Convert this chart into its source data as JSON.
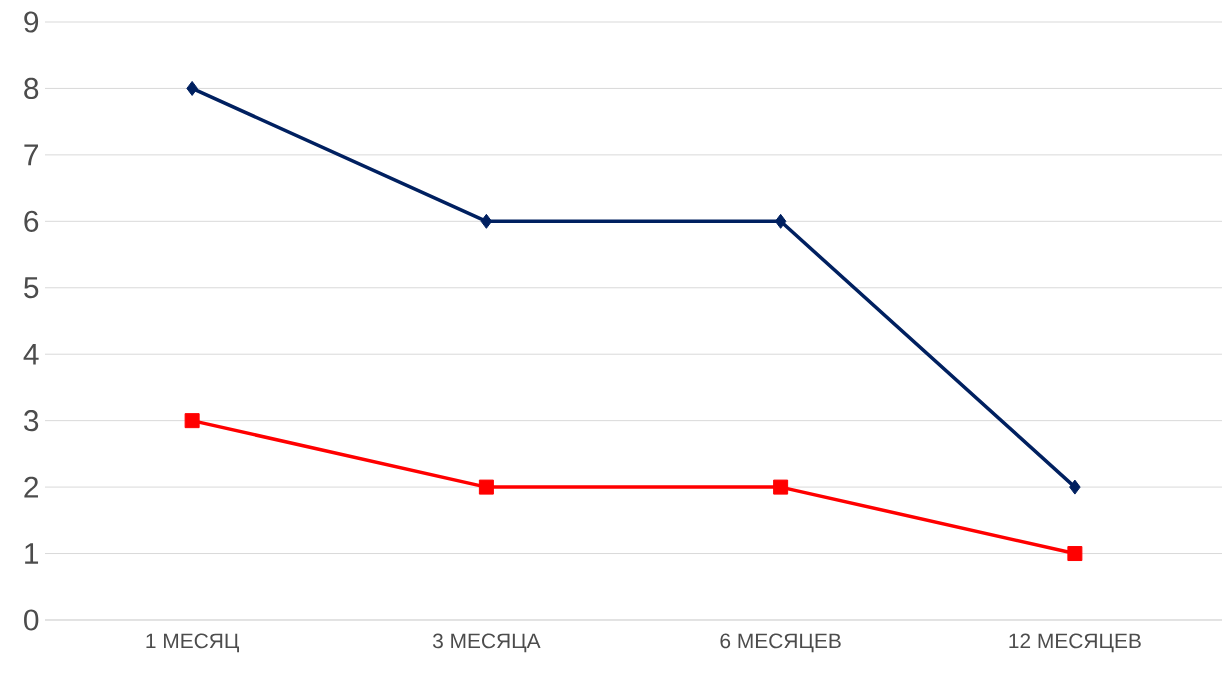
{
  "chart_data": {
    "type": "line",
    "categories": [
      "1 МЕСЯЦ",
      "3 МЕСЯЦА",
      "6 МЕСЯЦЕВ",
      "12 МЕСЯЦЕВ"
    ],
    "series": [
      {
        "color": "#002060",
        "marker": "diamond",
        "values": [
          8,
          6,
          6,
          2
        ]
      },
      {
        "color": "#ff0000",
        "marker": "square",
        "values": [
          3,
          2,
          2,
          1
        ]
      }
    ],
    "ylim": [
      0,
      9
    ],
    "yticks": [
      0,
      1,
      2,
      3,
      4,
      5,
      6,
      7,
      8,
      9
    ],
    "grid": "y",
    "legend": false
  }
}
